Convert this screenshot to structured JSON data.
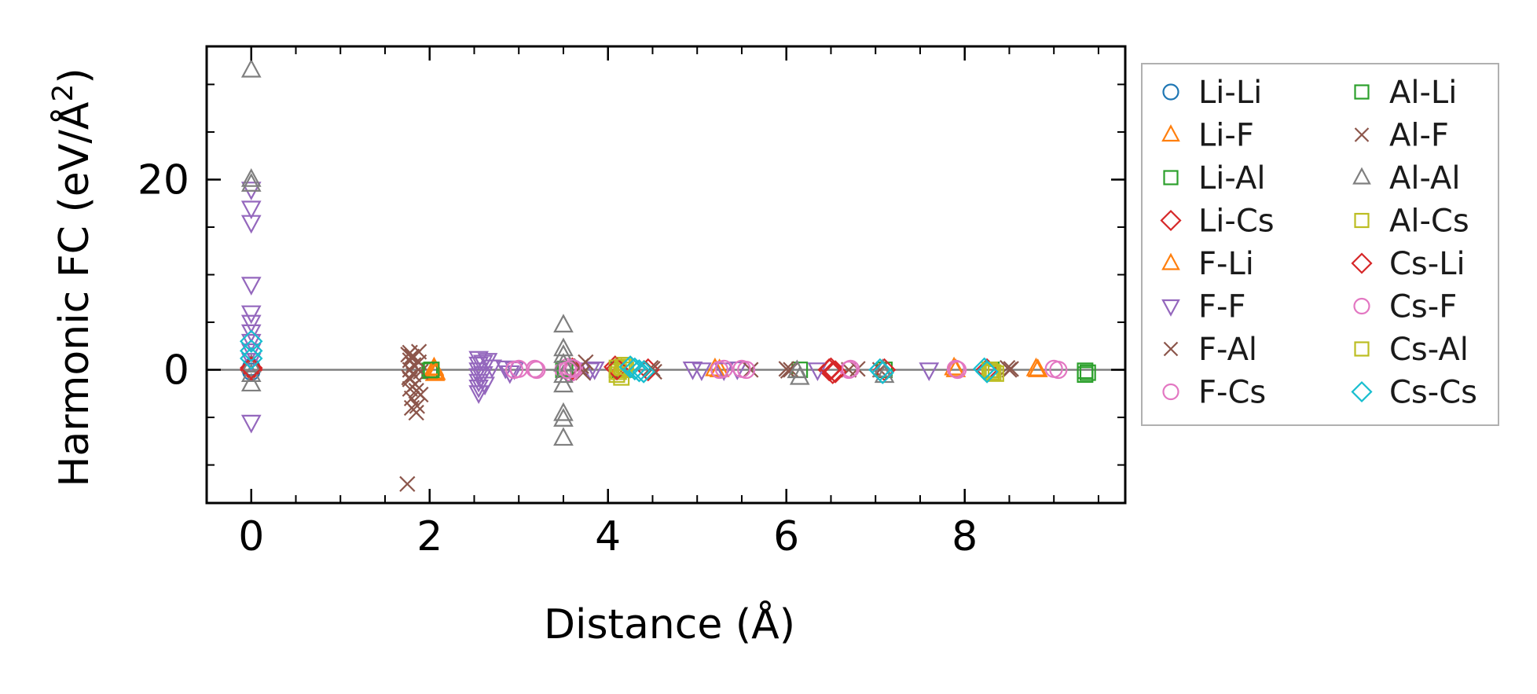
{
  "chart_data": {
    "type": "scatter",
    "title": "",
    "xlabel": "Distance (Å)",
    "ylabel": "Harmonic FC (eV/Å",
    "ylabel_sup": "2",
    "ylabel_end": ")",
    "xlim": [
      -0.5,
      9.8
    ],
    "ylim": [
      -14,
      34
    ],
    "x_ticks": [
      0,
      2,
      4,
      6,
      8
    ],
    "x_tick_labels": [
      "0",
      "2",
      "4",
      "6",
      "8"
    ],
    "y_ticks": [
      0,
      20
    ],
    "y_tick_labels": [
      "0",
      "20"
    ],
    "x_minor_step": 0.5,
    "y_minor_step": 5,
    "zero_line": true,
    "grid": false,
    "legend_placement": "outside-right",
    "legend_columns": 2,
    "series": [
      {
        "name": "Li-Li",
        "marker": "circle",
        "color": "#1f77b4",
        "points": [
          [
            0,
            0.3
          ],
          [
            0,
            -0.2
          ]
        ]
      },
      {
        "name": "Li-F",
        "marker": "triangle-up",
        "color": "#ff7f0e",
        "points": [
          [
            2.05,
            -0.2
          ],
          [
            2.05,
            0.1
          ],
          [
            2.06,
            -0.4
          ],
          [
            4.12,
            0.0
          ],
          [
            5.2,
            0.1
          ],
          [
            7.9,
            0.0
          ],
          [
            8.8,
            0.1
          ]
        ]
      },
      {
        "name": "Li-Al",
        "marker": "square",
        "color": "#2ca02c",
        "points": [
          [
            2.0,
            -0.1
          ],
          [
            3.5,
            0.0
          ],
          [
            4.1,
            0.0
          ],
          [
            6.15,
            0.0
          ],
          [
            7.1,
            0.0
          ],
          [
            8.3,
            0.0
          ],
          [
            9.35,
            -0.1
          ],
          [
            9.35,
            -0.5
          ]
        ]
      },
      {
        "name": "Li-Cs",
        "marker": "diamond",
        "color": "#d62728",
        "points": [
          [
            0,
            0.0
          ],
          [
            3.6,
            0.1
          ],
          [
            4.08,
            0.3
          ],
          [
            4.45,
            0.0
          ],
          [
            6.48,
            0.0
          ],
          [
            6.52,
            -0.3
          ],
          [
            7.1,
            0.0
          ],
          [
            8.25,
            0.0
          ]
        ]
      },
      {
        "name": "F-Li",
        "marker": "triangle-up",
        "color": "#ff7f0e",
        "points": [
          [
            2.05,
            0.2
          ],
          [
            2.07,
            -0.3
          ],
          [
            4.15,
            0.1
          ],
          [
            5.25,
            0.0
          ],
          [
            7.88,
            0.2
          ],
          [
            8.82,
            0.0
          ]
        ]
      },
      {
        "name": "F-F",
        "marker": "triangle-down",
        "color": "#9467bd",
        "points": [
          [
            0,
            19
          ],
          [
            0,
            17
          ],
          [
            0,
            15.5
          ],
          [
            0,
            9
          ],
          [
            0,
            6
          ],
          [
            0,
            5
          ],
          [
            0,
            4
          ],
          [
            0,
            3
          ],
          [
            0,
            2
          ],
          [
            0,
            1
          ],
          [
            0,
            -5.5
          ],
          [
            2.55,
            1.2
          ],
          [
            2.55,
            0.6
          ],
          [
            2.55,
            0.0
          ],
          [
            2.55,
            -0.6
          ],
          [
            2.55,
            -1.2
          ],
          [
            2.55,
            -1.8
          ],
          [
            2.55,
            -2.4
          ],
          [
            2.6,
            0.8
          ],
          [
            2.6,
            -0.4
          ],
          [
            2.62,
            -1.5
          ],
          [
            2.65,
            1.0
          ],
          [
            2.7,
            0.3
          ],
          [
            2.85,
            0.2
          ],
          [
            2.9,
            -0.3
          ],
          [
            2.95,
            0.1
          ],
          [
            3.8,
            0.0
          ],
          [
            3.85,
            0.1
          ],
          [
            4.95,
            0.1
          ],
          [
            5.05,
            0.0
          ],
          [
            5.3,
            0.0
          ],
          [
            5.45,
            0.1
          ],
          [
            6.35,
            0.0
          ],
          [
            7.6,
            0.0
          ]
        ]
      },
      {
        "name": "F-Al",
        "marker": "x",
        "color": "#8c564b",
        "points": [
          [
            1.75,
            -12
          ],
          [
            1.78,
            1.8
          ],
          [
            1.78,
            1.0
          ],
          [
            1.78,
            0.0
          ],
          [
            1.78,
            -1.0
          ],
          [
            1.78,
            -2.0
          ],
          [
            1.8,
            -3.0
          ],
          [
            1.8,
            1.4
          ],
          [
            1.82,
            0.5
          ],
          [
            1.82,
            -0.5
          ],
          [
            1.84,
            -1.5
          ],
          [
            1.85,
            -4.5
          ],
          [
            1.86,
            -3.8
          ],
          [
            1.88,
            1.9
          ],
          [
            1.88,
            0.8
          ],
          [
            1.9,
            -0.2
          ],
          [
            1.9,
            -2.6
          ],
          [
            3.7,
            0.4
          ],
          [
            3.72,
            -0.3
          ],
          [
            3.75,
            0.8
          ],
          [
            4.5,
            0.1
          ],
          [
            4.52,
            -0.2
          ],
          [
            5.6,
            0.0
          ],
          [
            6.0,
            0.1
          ],
          [
            6.02,
            -0.1
          ],
          [
            6.7,
            0.0
          ],
          [
            6.8,
            0.1
          ],
          [
            7.05,
            0.0
          ],
          [
            8.5,
            0.0
          ],
          [
            8.52,
            0.1
          ]
        ]
      },
      {
        "name": "F-Cs",
        "marker": "circle",
        "color": "#e377c2",
        "points": [
          [
            2.95,
            0.0
          ],
          [
            3.18,
            0.1
          ],
          [
            3.5,
            0.0
          ],
          [
            3.55,
            0.3
          ],
          [
            3.58,
            -0.3
          ],
          [
            3.62,
            0.1
          ],
          [
            5.25,
            0.0
          ],
          [
            5.5,
            0.1
          ],
          [
            6.7,
            0.0
          ],
          [
            7.9,
            0.1
          ],
          [
            9.05,
            0.0
          ]
        ]
      },
      {
        "name": "Al-Li",
        "marker": "square",
        "color": "#2ca02c",
        "points": [
          [
            2.02,
            0.0
          ],
          [
            3.52,
            0.1
          ],
          [
            9.38,
            -0.3
          ]
        ]
      },
      {
        "name": "Al-F",
        "marker": "x",
        "color": "#8c564b",
        "points": [
          [
            1.76,
            1.6
          ],
          [
            1.77,
            -0.8
          ],
          [
            1.8,
            -4.0
          ],
          [
            1.82,
            1.3
          ],
          [
            1.85,
            -2.2
          ],
          [
            3.68,
            0.2
          ],
          [
            4.48,
            0.2
          ],
          [
            6.05,
            0.0
          ],
          [
            8.48,
            0.2
          ]
        ]
      },
      {
        "name": "Al-Al",
        "marker": "triangle-up",
        "color": "#7f7f7f",
        "points": [
          [
            0,
            31.5
          ],
          [
            0,
            20.0
          ],
          [
            0,
            19.5
          ],
          [
            0,
            0.5
          ],
          [
            0,
            -0.5
          ],
          [
            0,
            -1.5
          ],
          [
            3.5,
            4.7
          ],
          [
            3.5,
            2.2
          ],
          [
            3.5,
            1.5
          ],
          [
            3.5,
            0.6
          ],
          [
            3.5,
            -0.6
          ],
          [
            3.5,
            -1.6
          ],
          [
            3.5,
            -4.6
          ],
          [
            3.5,
            -5.2
          ],
          [
            3.5,
            -7.2
          ],
          [
            6.12,
            -0.1
          ],
          [
            6.15,
            -0.8
          ],
          [
            7.08,
            0.0
          ],
          [
            7.1,
            -0.6
          ]
        ]
      },
      {
        "name": "Al-Cs",
        "marker": "square",
        "color": "#bcbd22",
        "points": [
          [
            4.1,
            0.2
          ],
          [
            4.12,
            -0.2
          ],
          [
            4.15,
            -0.8
          ],
          [
            4.18,
            0.5
          ],
          [
            4.2,
            0.0
          ],
          [
            8.3,
            -0.2
          ],
          [
            8.35,
            -0.4
          ]
        ]
      },
      {
        "name": "Cs-Li",
        "marker": "diamond",
        "color": "#d62728",
        "points": [
          [
            0,
            0.2
          ],
          [
            4.1,
            0.1
          ],
          [
            6.5,
            0.1
          ],
          [
            6.55,
            -0.2
          ]
        ]
      },
      {
        "name": "Cs-F",
        "marker": "circle",
        "color": "#e377c2",
        "points": [
          [
            3.0,
            0.1
          ],
          [
            3.2,
            0.0
          ],
          [
            3.55,
            0.0
          ],
          [
            3.6,
            0.2
          ],
          [
            5.3,
            0.1
          ],
          [
            5.55,
            0.0
          ],
          [
            6.72,
            0.1
          ],
          [
            7.92,
            0.0
          ],
          [
            9.0,
            0.1
          ]
        ]
      },
      {
        "name": "Cs-Al",
        "marker": "square",
        "color": "#bcbd22",
        "points": [
          [
            4.1,
            -0.5
          ],
          [
            4.16,
            0.3
          ],
          [
            8.28,
            0.0
          ],
          [
            8.32,
            -0.3
          ]
        ]
      },
      {
        "name": "Cs-Cs",
        "marker": "diamond",
        "color": "#17becf",
        "points": [
          [
            0,
            3.0
          ],
          [
            0,
            2.0
          ],
          [
            0,
            1.2
          ],
          [
            4.25,
            0.3
          ],
          [
            4.3,
            0.1
          ],
          [
            4.35,
            -0.1
          ],
          [
            4.4,
            -0.2
          ],
          [
            7.05,
            0.0
          ],
          [
            7.08,
            -0.3
          ],
          [
            8.22,
            0.1
          ],
          [
            8.25,
            -0.2
          ]
        ]
      }
    ]
  }
}
